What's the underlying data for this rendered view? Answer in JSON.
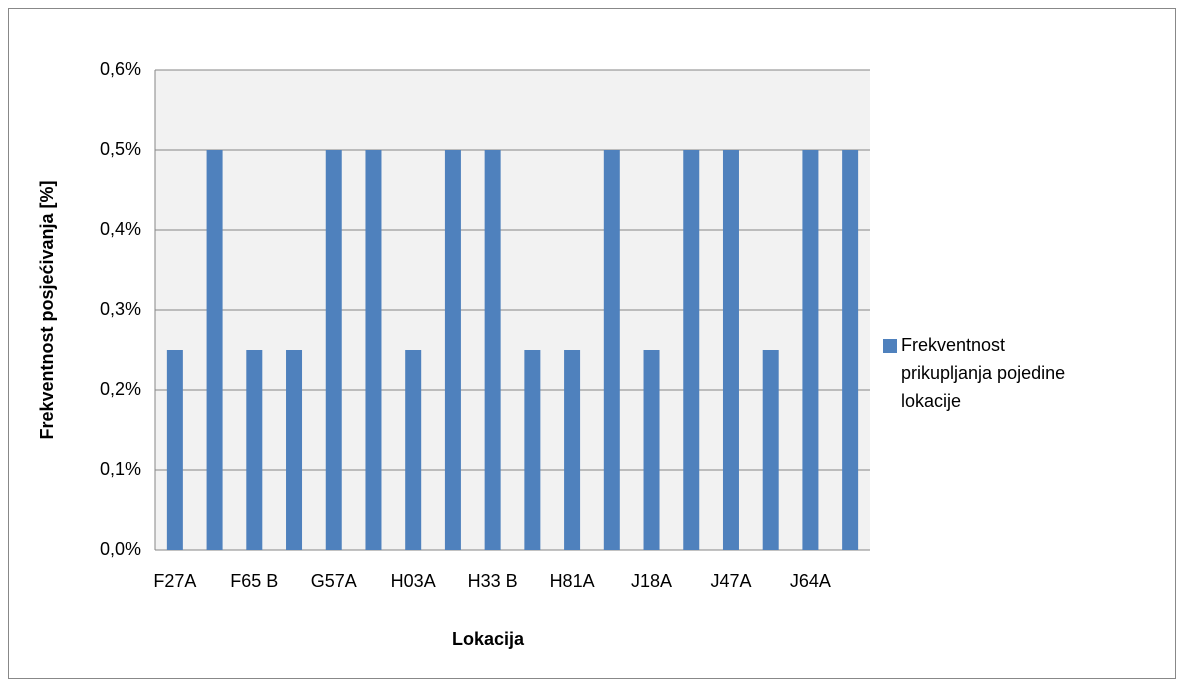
{
  "chart_data": {
    "type": "bar",
    "y_label": "Frekventnost posjećivanja [%]",
    "x_label": "Lokacija",
    "categories": [
      "F27A",
      null,
      "F65 B",
      null,
      "G57A",
      null,
      "H03A",
      null,
      "H33 B",
      null,
      "H81A",
      null,
      "J18A",
      null,
      "J47A",
      null,
      "J64A",
      null
    ],
    "series": [
      {
        "name": "Frekventnost prikupljanja pojedine lokacije",
        "color": "#4f81bd",
        "values": [
          0.25,
          0.5,
          0.25,
          0.25,
          0.5,
          0.5,
          0.25,
          0.5,
          0.5,
          0.25,
          0.25,
          0.5,
          0.25,
          0.5,
          0.5,
          0.25,
          0.5,
          0.5
        ]
      }
    ],
    "ylim": [
      0,
      0.6
    ],
    "yticks": [
      {
        "value": 0,
        "label": "0,0%"
      },
      {
        "value": 0.1,
        "label": "0,1%"
      },
      {
        "value": 0.2,
        "label": "0,2%"
      },
      {
        "value": 0.3,
        "label": "0,3%"
      },
      {
        "value": 0.4,
        "label": "0,4%"
      },
      {
        "value": 0.5,
        "label": "0,5%"
      },
      {
        "value": 0.6,
        "label": "0,6%"
      }
    ],
    "grid": true,
    "legend": "right"
  }
}
